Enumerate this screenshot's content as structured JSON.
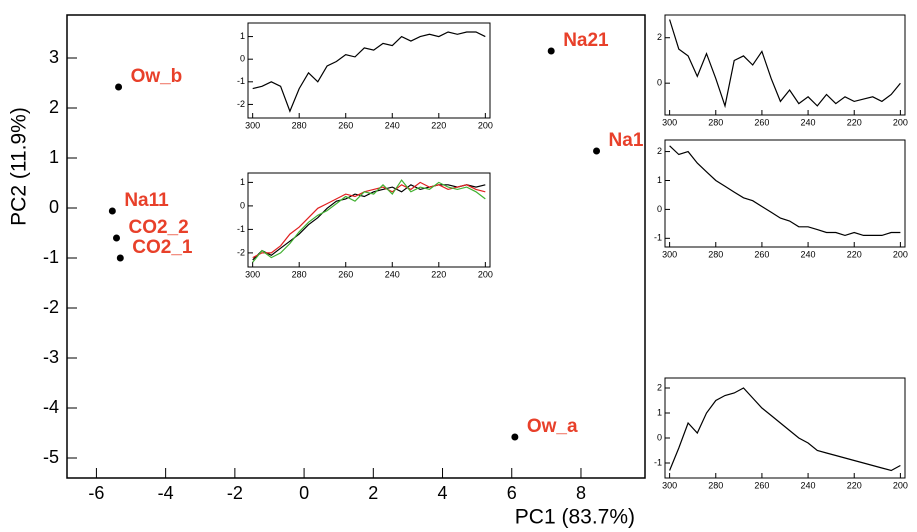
{
  "chart_data": [
    {
      "type": "scatter",
      "xlabel": "PC1 (83.7%)",
      "ylabel": "PC2 (11.9%)",
      "x": [
        -5.36,
        7.14,
        8.45,
        -5.54,
        -5.42,
        -5.31,
        6.09
      ],
      "values": [
        2.42,
        3.14,
        1.14,
        -0.06,
        -0.6,
        -1.0,
        -4.58
      ],
      "labels": [
        "Ow_b",
        "Na21",
        "Na1",
        "Na11",
        "CO2_2",
        "CO2_1",
        "Ow_a"
      ],
      "color": "#000000",
      "label_color": "#e8402a",
      "xlim": [
        -6.85,
        9.85
      ],
      "ylim": [
        -5.4,
        3.86
      ],
      "xticks": [
        -6,
        -4,
        -2,
        0,
        2,
        4,
        6,
        8
      ],
      "yticks": [
        -5,
        -4,
        -3,
        -2,
        -1,
        0,
        1,
        2,
        3
      ]
    },
    {
      "type": "line",
      "x": [
        300,
        296,
        292,
        288,
        284,
        280,
        276,
        272,
        268,
        264,
        260,
        256,
        252,
        248,
        244,
        240,
        236,
        232,
        228,
        224,
        220,
        216,
        212,
        208,
        204,
        200
      ],
      "series": [
        {
          "color": "#000000",
          "values": [
            -1.3,
            -1.2,
            -1.0,
            -1.2,
            -2.3,
            -1.3,
            -0.6,
            -1.0,
            -0.3,
            -0.1,
            0.2,
            0.1,
            0.5,
            0.4,
            0.7,
            0.6,
            1.0,
            0.8,
            1.0,
            1.1,
            1.0,
            1.2,
            1.1,
            1.2,
            1.2,
            1.0
          ]
        }
      ],
      "xlim": [
        302,
        198
      ],
      "ylim": [
        -2.6,
        1.6
      ],
      "xticks": [
        300,
        280,
        260,
        240,
        220,
        200
      ],
      "yticks": [
        1,
        0,
        -1,
        -2
      ]
    },
    {
      "type": "line",
      "x": [
        300,
        296,
        292,
        288,
        284,
        280,
        276,
        272,
        268,
        264,
        260,
        256,
        252,
        248,
        244,
        240,
        236,
        232,
        228,
        224,
        220,
        216,
        212,
        208,
        204,
        200
      ],
      "series": [
        {
          "color": "#000000",
          "values": [
            -2.3,
            -1.9,
            -2.1,
            -1.8,
            -1.5,
            -1.2,
            -0.8,
            -0.5,
            -0.1,
            0.2,
            0.3,
            0.5,
            0.4,
            0.6,
            0.7,
            0.8,
            0.6,
            0.9,
            0.7,
            0.8,
            0.9,
            0.9,
            0.8,
            0.9,
            0.8,
            0.9
          ]
        },
        {
          "color": "#e02020",
          "values": [
            -2.2,
            -2.0,
            -2.0,
            -1.7,
            -1.2,
            -0.9,
            -0.5,
            -0.1,
            0.1,
            0.3,
            0.5,
            0.4,
            0.6,
            0.7,
            0.8,
            0.6,
            0.9,
            0.7,
            1.0,
            0.8,
            0.9,
            0.7,
            0.8,
            0.9,
            0.7,
            0.6
          ]
        },
        {
          "color": "#40b030",
          "values": [
            -2.4,
            -1.9,
            -2.2,
            -2.0,
            -1.6,
            -1.1,
            -0.7,
            -0.4,
            -0.2,
            0.1,
            0.4,
            0.2,
            0.6,
            0.5,
            0.9,
            0.5,
            1.1,
            0.6,
            0.8,
            0.7,
            1.0,
            0.8,
            0.7,
            0.8,
            0.6,
            0.3
          ]
        }
      ],
      "xlim": [
        302,
        198
      ],
      "ylim": [
        -2.6,
        1.4
      ],
      "xticks": [
        300,
        280,
        260,
        240,
        220,
        200
      ],
      "yticks": [
        1,
        0,
        -1,
        -2
      ]
    },
    {
      "type": "line",
      "x": [
        300,
        296,
        292,
        288,
        284,
        280,
        276,
        272,
        268,
        264,
        260,
        256,
        252,
        248,
        244,
        240,
        236,
        232,
        228,
        224,
        220,
        216,
        212,
        208,
        204,
        200
      ],
      "series": [
        {
          "color": "#000000",
          "values": [
            2.8,
            1.5,
            1.2,
            0.3,
            1.3,
            0.2,
            -1.0,
            1.0,
            1.2,
            0.8,
            1.4,
            0.2,
            -0.8,
            -0.3,
            -0.9,
            -0.6,
            -1.0,
            -0.5,
            -0.9,
            -0.6,
            -0.8,
            -0.7,
            -0.6,
            -0.8,
            -0.5,
            0.0
          ]
        }
      ],
      "xlim": [
        302,
        198
      ],
      "ylim": [
        -1.4,
        3.0
      ],
      "xticks": [
        300,
        280,
        260,
        240,
        220,
        200
      ],
      "yticks": [
        2,
        0
      ]
    },
    {
      "type": "line",
      "x": [
        300,
        296,
        292,
        288,
        284,
        280,
        276,
        272,
        268,
        264,
        260,
        256,
        252,
        248,
        244,
        240,
        236,
        232,
        228,
        224,
        220,
        216,
        212,
        208,
        204,
        200
      ],
      "series": [
        {
          "color": "#000000",
          "values": [
            2.2,
            1.9,
            2.0,
            1.6,
            1.3,
            1.0,
            0.8,
            0.6,
            0.4,
            0.3,
            0.1,
            -0.1,
            -0.3,
            -0.4,
            -0.6,
            -0.6,
            -0.7,
            -0.8,
            -0.8,
            -0.9,
            -0.8,
            -0.9,
            -0.9,
            -0.9,
            -0.8,
            -0.8
          ]
        }
      ],
      "xlim": [
        302,
        198
      ],
      "ylim": [
        -1.3,
        2.4
      ],
      "xticks": [
        300,
        280,
        260,
        240,
        220,
        200
      ],
      "yticks": [
        2,
        1,
        0,
        -1
      ]
    },
    {
      "type": "line",
      "x": [
        300,
        296,
        292,
        288,
        284,
        280,
        276,
        272,
        268,
        264,
        260,
        256,
        252,
        248,
        244,
        240,
        236,
        232,
        228,
        224,
        220,
        216,
        212,
        208,
        204,
        200
      ],
      "series": [
        {
          "color": "#000000",
          "values": [
            -1.3,
            -0.4,
            0.6,
            0.2,
            1.0,
            1.5,
            1.7,
            1.8,
            2.0,
            1.6,
            1.2,
            0.9,
            0.6,
            0.3,
            0.0,
            -0.2,
            -0.5,
            -0.6,
            -0.7,
            -0.8,
            -0.9,
            -1.0,
            -1.1,
            -1.2,
            -1.3,
            -1.1
          ]
        }
      ],
      "xlim": [
        302,
        198
      ],
      "ylim": [
        -1.6,
        2.4
      ],
      "xticks": [
        300,
        280,
        260,
        240,
        220,
        200
      ],
      "yticks": [
        2,
        1,
        0,
        -1
      ]
    }
  ]
}
